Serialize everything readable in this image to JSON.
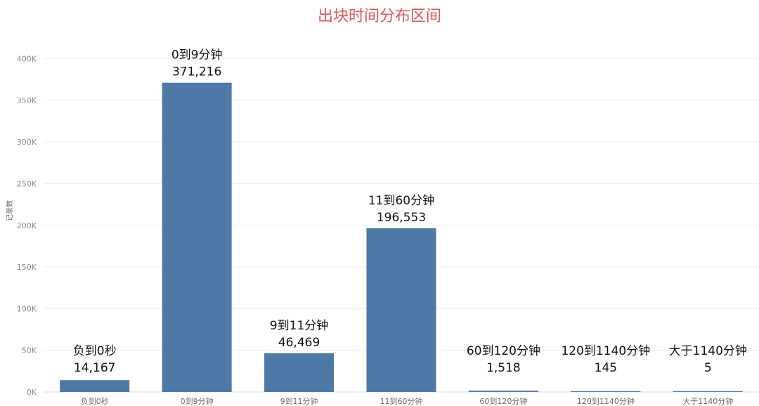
{
  "chart_data": {
    "type": "bar",
    "title": "出块时间分布区间",
    "xlabel": "",
    "ylabel": "记录数",
    "ylim": [
      0,
      430000
    ],
    "yticks": [
      0,
      50000,
      100000,
      150000,
      200000,
      250000,
      300000,
      350000,
      400000
    ],
    "ytick_labels": [
      "0K",
      "50K",
      "100K",
      "150K",
      "200K",
      "250K",
      "300K",
      "350K",
      "400K"
    ],
    "categories": [
      "负到0秒",
      "0到9分钟",
      "9到11分钟",
      "11到60分钟",
      "60到120分钟",
      "120到1140分钟",
      "大于1140分钟"
    ],
    "values": [
      14167,
      371216,
      46469,
      196553,
      1518,
      145,
      5
    ],
    "value_labels": [
      "14,167",
      "371,216",
      "46,469",
      "196,553",
      "1,518",
      "145",
      "5"
    ],
    "grid": true,
    "legend": "none",
    "bar_color": "#4e79a7",
    "title_color": "#e35454"
  }
}
